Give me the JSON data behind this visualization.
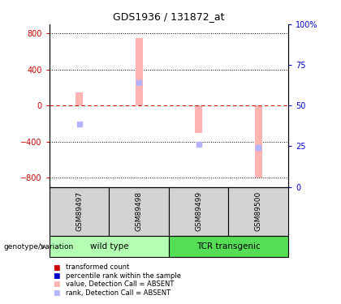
{
  "title": "GDS1936 / 131872_at",
  "samples": [
    "GSM89497",
    "GSM89498",
    "GSM89499",
    "GSM89500"
  ],
  "bar_values": [
    150,
    750,
    -300,
    -800
  ],
  "rank_values": [
    -200,
    250,
    -430,
    -460
  ],
  "ylim": [
    -900,
    900
  ],
  "yticks": [
    -800,
    -400,
    0,
    400,
    800
  ],
  "right_yticks": [
    0,
    25,
    50,
    75,
    100
  ],
  "right_ylim": [
    -112.5,
    1012.5
  ],
  "bar_color_absent": "#ffb3b3",
  "rank_color_absent": "#b3b3ff",
  "zero_line_color": "#cc0000",
  "left_tick_color": "#cc0000",
  "right_tick_color": "#0000cc",
  "legend_items": [
    {
      "color": "#cc0000",
      "label": "transformed count"
    },
    {
      "color": "#0000cc",
      "label": "percentile rank within the sample"
    },
    {
      "color": "#ffb3b3",
      "label": "value, Detection Call = ABSENT"
    },
    {
      "color": "#b3b3ff",
      "label": "rank, Detection Call = ABSENT"
    }
  ],
  "genotype_label": "genotype/variation",
  "group_info": [
    {
      "name": "wild type",
      "start": 0,
      "end": 1,
      "color": "#b3ffb3"
    },
    {
      "name": "TCR transgenic",
      "start": 2,
      "end": 3,
      "color": "#55dd55"
    }
  ],
  "bar_width": 0.12
}
